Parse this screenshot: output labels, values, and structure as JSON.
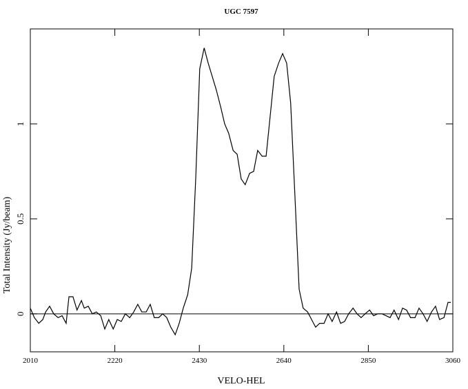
{
  "chart_data": {
    "type": "line",
    "title": "UGC 7597",
    "x_label": "VELO-HEL",
    "y_label": "Total Intensity (Jy/beam)",
    "x": [
      2010,
      2020,
      2031,
      2041,
      2048,
      2058,
      2068,
      2079,
      2089,
      2099,
      2106,
      2116,
      2126,
      2137,
      2144,
      2154,
      2164,
      2174,
      2185,
      2195,
      2205,
      2216,
      2226,
      2236,
      2246,
      2257,
      2267,
      2277,
      2287,
      2298,
      2308,
      2318,
      2329,
      2339,
      2349,
      2359,
      2370,
      2380,
      2390,
      2401,
      2411,
      2421,
      2431,
      2442,
      2452,
      2462,
      2472,
      2483,
      2493,
      2503,
      2514,
      2524,
      2534,
      2544,
      2555,
      2565,
      2575,
      2586,
      2596,
      2606,
      2616,
      2627,
      2637,
      2647,
      2657,
      2668,
      2678,
      2688,
      2699,
      2709,
      2719,
      2729,
      2740,
      2750,
      2760,
      2771,
      2781,
      2791,
      2801,
      2812,
      2822,
      2832,
      2842,
      2853,
      2863,
      2873,
      2884,
      2894,
      2904,
      2914,
      2925,
      2935,
      2945,
      2955,
      2966,
      2976,
      2986,
      2996,
      3007,
      3017,
      3027,
      3038,
      3048,
      3055
    ],
    "series": [
      {
        "color": "#000000",
        "values": [
          0.03,
          -0.02,
          -0.05,
          -0.03,
          0.01,
          0.04,
          0.0,
          -0.02,
          -0.01,
          -0.05,
          0.09,
          0.09,
          0.02,
          0.07,
          0.03,
          0.04,
          0.0,
          0.01,
          -0.01,
          -0.08,
          -0.03,
          -0.08,
          -0.03,
          -0.04,
          0.0,
          -0.02,
          0.01,
          0.05,
          0.01,
          0.01,
          0.05,
          -0.02,
          -0.02,
          0.0,
          -0.02,
          -0.07,
          -0.11,
          -0.05,
          0.03,
          0.1,
          0.24,
          0.71,
          1.29,
          1.4,
          1.32,
          1.25,
          1.18,
          1.09,
          1.0,
          0.95,
          0.86,
          0.84,
          0.71,
          0.68,
          0.74,
          0.75,
          0.86,
          0.83,
          0.83,
          1.04,
          1.25,
          1.32,
          1.37,
          1.32,
          1.11,
          0.6,
          0.13,
          0.03,
          0.01,
          -0.03,
          -0.07,
          -0.05,
          -0.05,
          0.0,
          -0.04,
          0.01,
          -0.05,
          -0.04,
          0.0,
          0.03,
          0.0,
          -0.02,
          0.0,
          0.02,
          -0.01,
          0.0,
          0.0,
          -0.01,
          -0.02,
          0.02,
          -0.03,
          0.03,
          0.02,
          -0.02,
          -0.02,
          0.03,
          0.0,
          -0.04,
          0.01,
          0.04,
          -0.03,
          -0.02,
          0.06,
          0.06
        ]
      }
    ],
    "xlim": [
      2010,
      3060
    ],
    "xticks": [
      2010,
      2220,
      2430,
      2640,
      2850,
      3060
    ],
    "ylim": [
      -0.2,
      1.5
    ],
    "yticks": [
      0,
      0.5,
      1
    ]
  }
}
